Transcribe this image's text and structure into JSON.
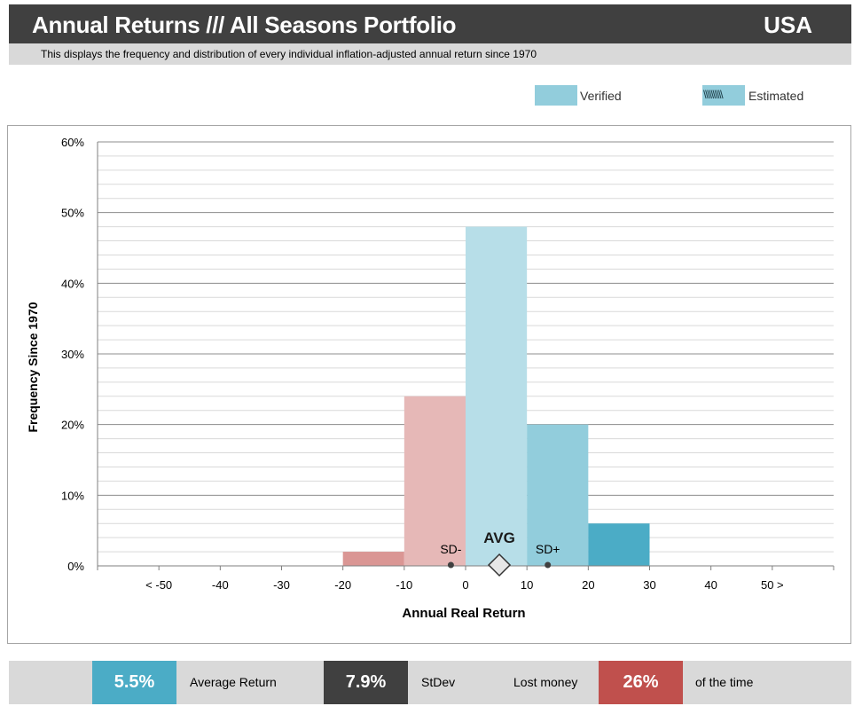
{
  "header": {
    "title": "Annual Returns /// All Seasons Portfolio",
    "country": "USA",
    "subtitle": "This displays the frequency and distribution of every individual inflation-adjusted annual return since 1970"
  },
  "legend": {
    "verified_label": "Verified",
    "estimated_label": "Estimated",
    "estimated_hatch": "\\\\\\\\\\\\\\\\\\\\",
    "verified_color": "#92cddc",
    "estimated_color": "#92cddc"
  },
  "chart_data": {
    "type": "bar",
    "categories": [
      "< -50",
      "-40",
      "-30",
      "-20",
      "-10",
      "0",
      "10",
      "20",
      "30",
      "40",
      "50 >"
    ],
    "bins": [
      {
        "from": -60,
        "to": -50,
        "value": 0,
        "color": "#e6b8b7"
      },
      {
        "from": -50,
        "to": -40,
        "value": 0,
        "color": "#e6b8b7"
      },
      {
        "from": -40,
        "to": -30,
        "value": 0,
        "color": "#e6b8b7"
      },
      {
        "from": -30,
        "to": -20,
        "value": 0,
        "color": "#e6b8b7"
      },
      {
        "from": -20,
        "to": -10,
        "value": 2,
        "color": "#da9694"
      },
      {
        "from": -10,
        "to": 0,
        "value": 24,
        "color": "#e6b8b7"
      },
      {
        "from": 0,
        "to": 10,
        "value": 48,
        "color": "#b7dee8"
      },
      {
        "from": 10,
        "to": 20,
        "value": 20,
        "color": "#92cddc"
      },
      {
        "from": 20,
        "to": 30,
        "value": 6,
        "color": "#4bacc6"
      },
      {
        "from": 30,
        "to": 40,
        "value": 0,
        "color": "#4bacc6"
      },
      {
        "from": 40,
        "to": 50,
        "value": 0,
        "color": "#4bacc6"
      },
      {
        "from": 50,
        "to": 60,
        "value": 0,
        "color": "#4bacc6"
      }
    ],
    "xlabel": "Annual Real Return",
    "ylabel": "Frequency Since 1970",
    "xlim": [
      -60,
      60
    ],
    "ylim": [
      0,
      60
    ],
    "yticks": [
      "0%",
      "10%",
      "20%",
      "30%",
      "40%",
      "50%",
      "60%"
    ],
    "xtick_values": [
      -50,
      -40,
      -30,
      -20,
      -10,
      0,
      10,
      20,
      30,
      40,
      50
    ],
    "grid": true,
    "markers": {
      "avg": {
        "label": "AVG",
        "x": 5.5
      },
      "sd_minus": {
        "label": "SD-",
        "x": -2.4
      },
      "sd_plus": {
        "label": "SD+",
        "x": 13.4
      }
    }
  },
  "stats": {
    "average_return": "5.5%",
    "average_return_label": "Average Return",
    "stdev": "7.9%",
    "stdev_label": "StDev",
    "lost_money_label": "Lost money",
    "lost_money_pct": "26%",
    "of_time_label": "of the time",
    "average_color": "#4bacc6",
    "stdev_color": "#404040",
    "lost_color": "#c0504d"
  }
}
